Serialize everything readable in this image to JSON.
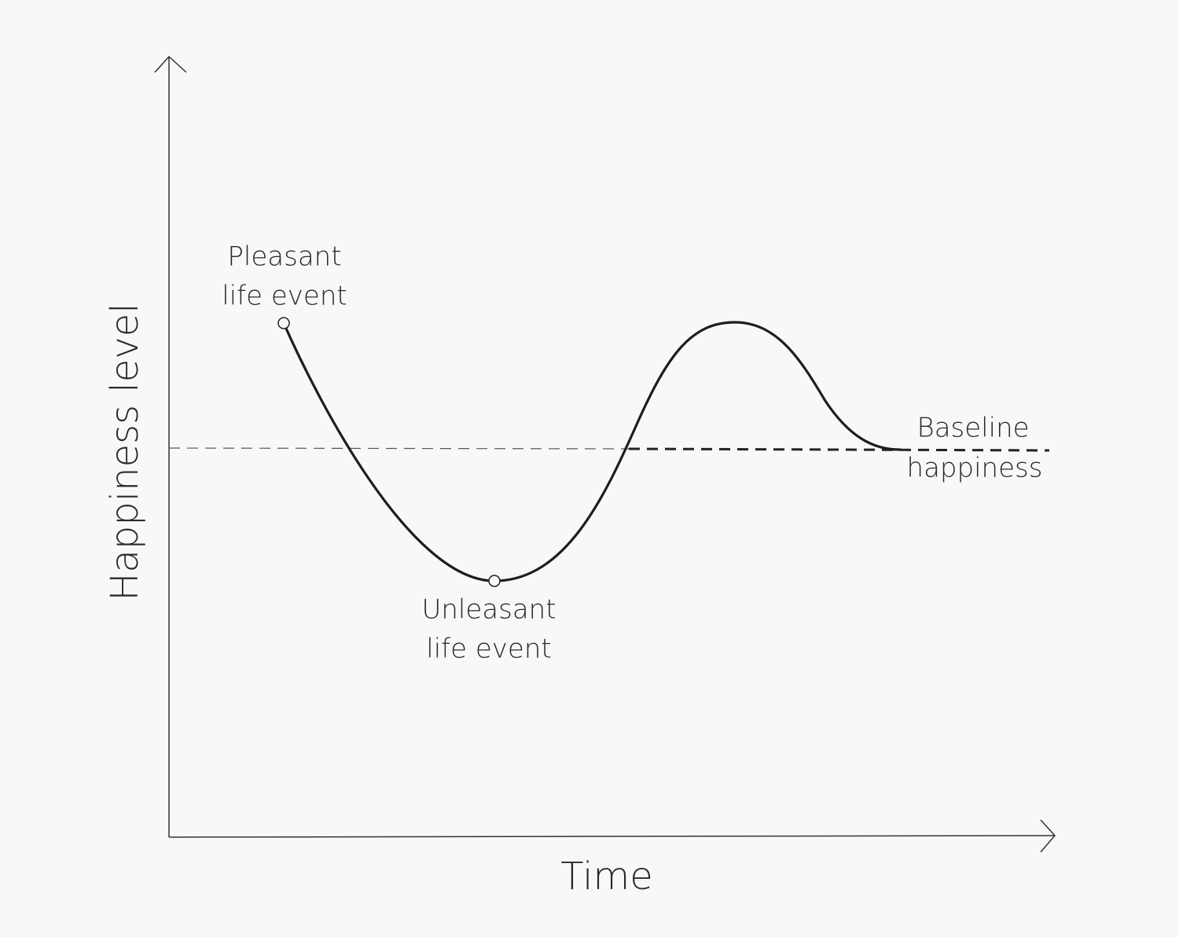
{
  "axes": {
    "x_label": "Time",
    "y_label": "Happiness level"
  },
  "annotations": [
    {
      "lines": [
        "Pleasant",
        "life event"
      ]
    },
    {
      "lines": [
        "Unleasant",
        "life event"
      ]
    },
    {
      "lines": [
        "Baseline",
        "happiness"
      ]
    }
  ]
}
